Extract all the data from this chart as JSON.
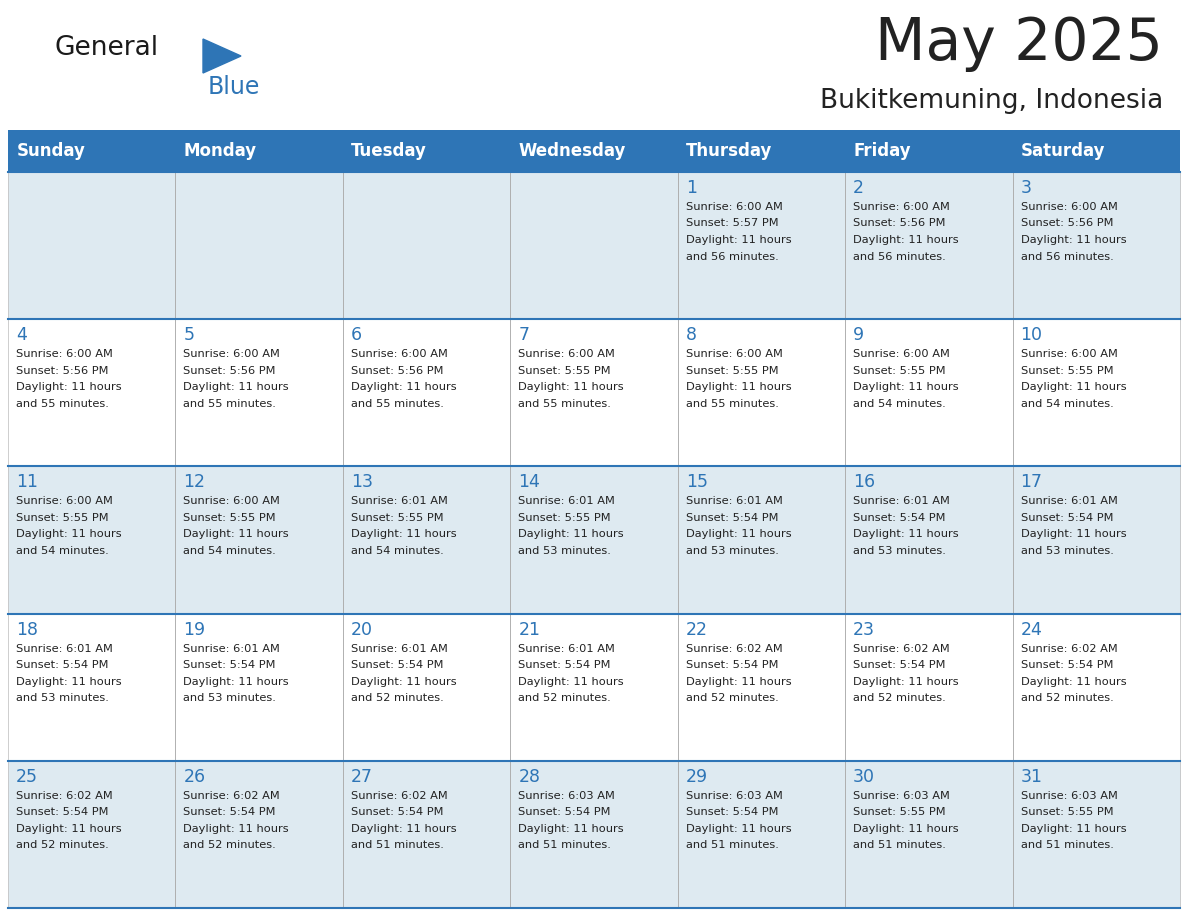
{
  "title": "May 2025",
  "subtitle": "Bukitkemuning, Indonesia",
  "header_bg": "#2E75B6",
  "header_text_color": "#FFFFFF",
  "cell_bg_light": "#DEEAF1",
  "cell_bg_white": "#FFFFFF",
  "text_color_dark": "#222222",
  "text_color_blue": "#2E75B6",
  "days_of_week": [
    "Sunday",
    "Monday",
    "Tuesday",
    "Wednesday",
    "Thursday",
    "Friday",
    "Saturday"
  ],
  "weeks": [
    [
      {
        "day": "",
        "info": ""
      },
      {
        "day": "",
        "info": ""
      },
      {
        "day": "",
        "info": ""
      },
      {
        "day": "",
        "info": ""
      },
      {
        "day": "1",
        "info": "Sunrise: 6:00 AM\nSunset: 5:57 PM\nDaylight: 11 hours\nand 56 minutes."
      },
      {
        "day": "2",
        "info": "Sunrise: 6:00 AM\nSunset: 5:56 PM\nDaylight: 11 hours\nand 56 minutes."
      },
      {
        "day": "3",
        "info": "Sunrise: 6:00 AM\nSunset: 5:56 PM\nDaylight: 11 hours\nand 56 minutes."
      }
    ],
    [
      {
        "day": "4",
        "info": "Sunrise: 6:00 AM\nSunset: 5:56 PM\nDaylight: 11 hours\nand 55 minutes."
      },
      {
        "day": "5",
        "info": "Sunrise: 6:00 AM\nSunset: 5:56 PM\nDaylight: 11 hours\nand 55 minutes."
      },
      {
        "day": "6",
        "info": "Sunrise: 6:00 AM\nSunset: 5:56 PM\nDaylight: 11 hours\nand 55 minutes."
      },
      {
        "day": "7",
        "info": "Sunrise: 6:00 AM\nSunset: 5:55 PM\nDaylight: 11 hours\nand 55 minutes."
      },
      {
        "day": "8",
        "info": "Sunrise: 6:00 AM\nSunset: 5:55 PM\nDaylight: 11 hours\nand 55 minutes."
      },
      {
        "day": "9",
        "info": "Sunrise: 6:00 AM\nSunset: 5:55 PM\nDaylight: 11 hours\nand 54 minutes."
      },
      {
        "day": "10",
        "info": "Sunrise: 6:00 AM\nSunset: 5:55 PM\nDaylight: 11 hours\nand 54 minutes."
      }
    ],
    [
      {
        "day": "11",
        "info": "Sunrise: 6:00 AM\nSunset: 5:55 PM\nDaylight: 11 hours\nand 54 minutes."
      },
      {
        "day": "12",
        "info": "Sunrise: 6:00 AM\nSunset: 5:55 PM\nDaylight: 11 hours\nand 54 minutes."
      },
      {
        "day": "13",
        "info": "Sunrise: 6:01 AM\nSunset: 5:55 PM\nDaylight: 11 hours\nand 54 minutes."
      },
      {
        "day": "14",
        "info": "Sunrise: 6:01 AM\nSunset: 5:55 PM\nDaylight: 11 hours\nand 53 minutes."
      },
      {
        "day": "15",
        "info": "Sunrise: 6:01 AM\nSunset: 5:54 PM\nDaylight: 11 hours\nand 53 minutes."
      },
      {
        "day": "16",
        "info": "Sunrise: 6:01 AM\nSunset: 5:54 PM\nDaylight: 11 hours\nand 53 minutes."
      },
      {
        "day": "17",
        "info": "Sunrise: 6:01 AM\nSunset: 5:54 PM\nDaylight: 11 hours\nand 53 minutes."
      }
    ],
    [
      {
        "day": "18",
        "info": "Sunrise: 6:01 AM\nSunset: 5:54 PM\nDaylight: 11 hours\nand 53 minutes."
      },
      {
        "day": "19",
        "info": "Sunrise: 6:01 AM\nSunset: 5:54 PM\nDaylight: 11 hours\nand 53 minutes."
      },
      {
        "day": "20",
        "info": "Sunrise: 6:01 AM\nSunset: 5:54 PM\nDaylight: 11 hours\nand 52 minutes."
      },
      {
        "day": "21",
        "info": "Sunrise: 6:01 AM\nSunset: 5:54 PM\nDaylight: 11 hours\nand 52 minutes."
      },
      {
        "day": "22",
        "info": "Sunrise: 6:02 AM\nSunset: 5:54 PM\nDaylight: 11 hours\nand 52 minutes."
      },
      {
        "day": "23",
        "info": "Sunrise: 6:02 AM\nSunset: 5:54 PM\nDaylight: 11 hours\nand 52 minutes."
      },
      {
        "day": "24",
        "info": "Sunrise: 6:02 AM\nSunset: 5:54 PM\nDaylight: 11 hours\nand 52 minutes."
      }
    ],
    [
      {
        "day": "25",
        "info": "Sunrise: 6:02 AM\nSunset: 5:54 PM\nDaylight: 11 hours\nand 52 minutes."
      },
      {
        "day": "26",
        "info": "Sunrise: 6:02 AM\nSunset: 5:54 PM\nDaylight: 11 hours\nand 52 minutes."
      },
      {
        "day": "27",
        "info": "Sunrise: 6:02 AM\nSunset: 5:54 PM\nDaylight: 11 hours\nand 51 minutes."
      },
      {
        "day": "28",
        "info": "Sunrise: 6:03 AM\nSunset: 5:54 PM\nDaylight: 11 hours\nand 51 minutes."
      },
      {
        "day": "29",
        "info": "Sunrise: 6:03 AM\nSunset: 5:54 PM\nDaylight: 11 hours\nand 51 minutes."
      },
      {
        "day": "30",
        "info": "Sunrise: 6:03 AM\nSunset: 5:55 PM\nDaylight: 11 hours\nand 51 minutes."
      },
      {
        "day": "31",
        "info": "Sunrise: 6:03 AM\nSunset: 5:55 PM\nDaylight: 11 hours\nand 51 minutes."
      }
    ]
  ],
  "logo_general_color": "#1a1a1a",
  "logo_blue_color": "#2E75B6",
  "logo_triangle_color": "#2E75B6",
  "fig_width": 11.88,
  "fig_height": 9.18,
  "dpi": 100
}
